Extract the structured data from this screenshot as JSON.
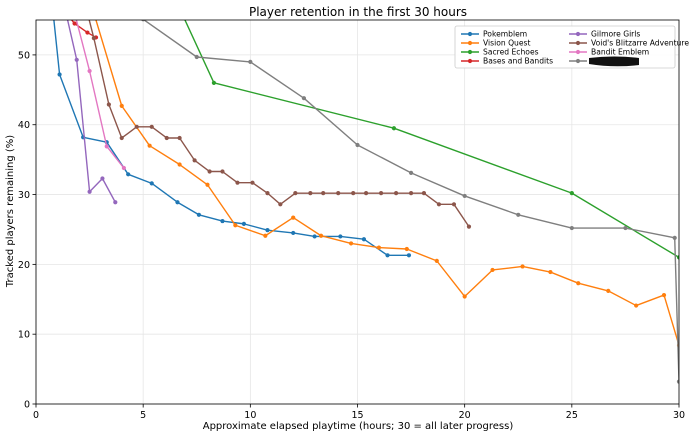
{
  "chart_data": {
    "type": "line",
    "title": "Player retention in the first 30 hours",
    "xlabel": "Approximate elapsed playtime (hours; 30 = all later progress)",
    "ylabel": "Tracked players remaining (%)",
    "xlim": [
      0,
      30
    ],
    "ylim": [
      0,
      55
    ],
    "xticks": [
      0,
      5,
      10,
      15,
      20,
      25,
      30
    ],
    "yticks": [
      0,
      10,
      20,
      30,
      40,
      50
    ],
    "grid": true,
    "legend_position": "top-right",
    "legend_columns": 2,
    "redacted_legend_entry_color": "#7f7f7f",
    "series": [
      {
        "name": "Pokemblem",
        "color": "#1f77b4",
        "x": [
          0.8,
          1.1,
          2.2,
          3.3,
          4.3,
          5.4,
          6.6,
          7.6,
          8.7,
          9.7,
          10.8,
          12.0,
          13.0,
          14.2,
          15.3,
          16.4,
          17.4
        ],
        "y": [
          56,
          47.2,
          38.2,
          37.5,
          32.9,
          31.6,
          28.9,
          27.1,
          26.2,
          25.8,
          24.9,
          24.5,
          24.0,
          24.0,
          23.6,
          21.3,
          21.3
        ]
      },
      {
        "name": "Vision Quest",
        "color": "#ff7f0e",
        "x": [
          2.7,
          4.0,
          5.3,
          6.7,
          8.0,
          9.3,
          10.7,
          12.0,
          13.3,
          14.7,
          16.0,
          17.3,
          18.7,
          20.0,
          21.3,
          22.7,
          24.0,
          25.3,
          26.7,
          28.0,
          29.3,
          30.0
        ],
        "y": [
          56,
          42.7,
          37.0,
          34.3,
          31.4,
          25.6,
          24.1,
          26.7,
          24.1,
          23.0,
          22.4,
          22.2,
          20.5,
          15.4,
          19.2,
          19.7,
          18.9,
          17.3,
          16.2,
          14.1,
          15.6,
          8.4
        ]
      },
      {
        "name": "Sacred Echoes",
        "color": "#2ca02c",
        "x": [
          6.8,
          8.3,
          16.7,
          25.0,
          30.0
        ],
        "y": [
          56,
          46.0,
          39.5,
          30.2,
          21.0
        ]
      },
      {
        "name": "Bases and Bandits",
        "color": "#d62728",
        "x": [
          1.4,
          1.8,
          2.4,
          2.8
        ],
        "y": [
          56,
          54.5,
          53.2,
          52.5
        ]
      },
      {
        "name": "Gilmore Girls",
        "color": "#9467bd",
        "x": [
          1.4,
          1.9,
          2.5,
          3.1,
          3.7
        ],
        "y": [
          56,
          49.3,
          30.4,
          32.3,
          28.9
        ]
      },
      {
        "name": "Void's Blitzarre Adventure",
        "color": "#8c564b",
        "x": [
          2.4,
          2.7,
          3.4,
          4.0,
          4.7,
          5.4,
          6.1,
          6.7,
          7.4,
          8.1,
          8.7,
          9.4,
          10.1,
          10.8,
          11.4,
          12.1,
          12.8,
          13.4,
          14.1,
          14.8,
          15.4,
          16.1,
          16.8,
          17.5,
          18.1,
          18.8,
          19.5,
          20.2
        ],
        "y": [
          56,
          52.4,
          42.9,
          38.1,
          39.7,
          39.7,
          38.1,
          38.1,
          34.9,
          33.3,
          33.3,
          31.7,
          31.7,
          30.2,
          28.6,
          30.2,
          30.2,
          30.2,
          30.2,
          30.2,
          30.2,
          30.2,
          30.2,
          30.2,
          30.2,
          28.6,
          28.6,
          25.4
        ]
      },
      {
        "name": "Bandit Emblem",
        "color": "#e377c2",
        "x": [
          1.8,
          2.5,
          3.3,
          4.1
        ],
        "y": [
          56,
          47.7,
          36.9,
          33.8
        ]
      },
      {
        "name": "",
        "color": "#7f7f7f",
        "x": [
          4.6,
          5.0,
          7.5,
          10.0,
          12.5,
          15.0,
          17.5,
          20.0,
          22.5,
          25.0,
          27.5,
          29.8,
          30.0
        ],
        "y": [
          56,
          55.1,
          49.7,
          49.0,
          43.8,
          37.1,
          33.1,
          29.8,
          27.1,
          25.2,
          25.2,
          23.8,
          3.2
        ]
      }
    ]
  }
}
